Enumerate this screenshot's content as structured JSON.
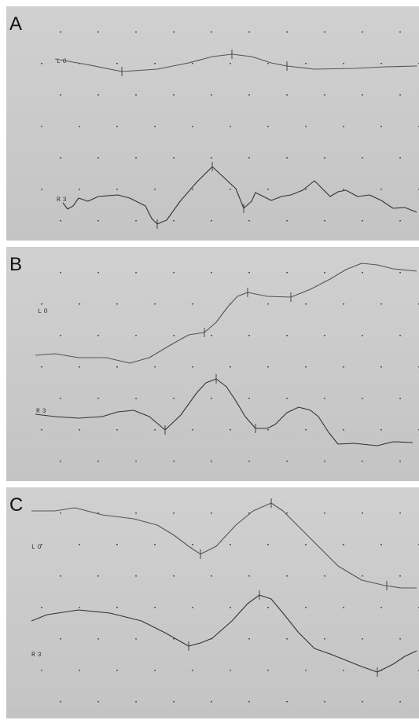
{
  "panels": [
    {
      "label": "A",
      "traces": [
        "LO",
        "R3"
      ]
    },
    {
      "label": "B",
      "traces": [
        "LO",
        "R3"
      ]
    },
    {
      "label": "C",
      "traces": [
        "LO",
        "R3"
      ]
    }
  ]
}
